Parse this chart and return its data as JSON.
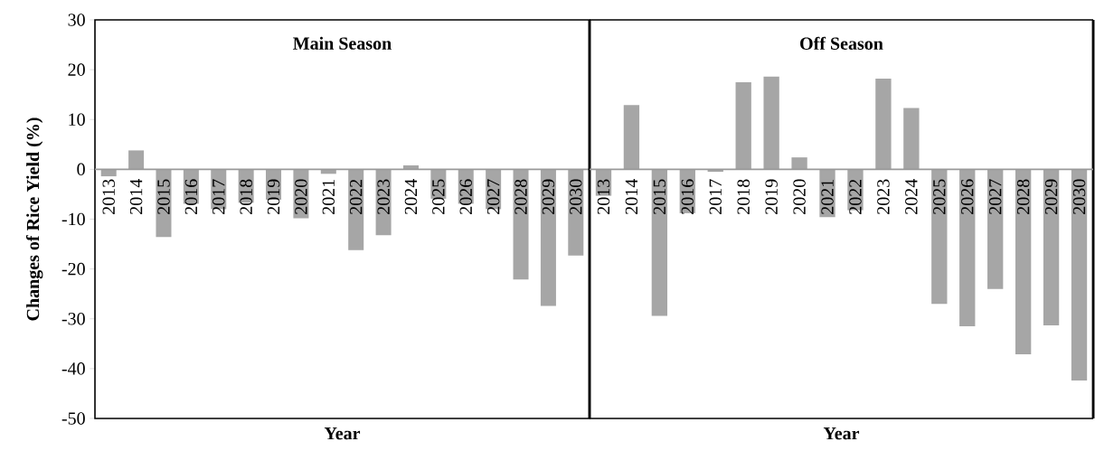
{
  "chart_data": [
    {
      "type": "bar",
      "title": "Main Season",
      "xlabel": "Year",
      "ylabel": "Changes of Rice Yield (%)",
      "categories": [
        "2013",
        "2014",
        "2015",
        "2016",
        "2017",
        "2018",
        "2019",
        "2020",
        "2021",
        "2022",
        "2023",
        "2024",
        "2025",
        "2026",
        "2027",
        "2028",
        "2029",
        "2030"
      ],
      "values": [
        -1.4,
        3.8,
        -13.6,
        -6.9,
        -8,
        -6.7,
        -6.1,
        -9.8,
        -0.9,
        -16.2,
        -13.2,
        0.8,
        -5.9,
        -6.9,
        -8,
        -22.1,
        -27.4,
        -17.3
      ],
      "color": "#a6a6a6",
      "ylim": [
        -50,
        30
      ],
      "yticks": [
        -50,
        -40,
        -30,
        -20,
        -10,
        0,
        10,
        20,
        30
      ]
    },
    {
      "type": "bar",
      "title": "Off Season",
      "xlabel": "Year",
      "categories": [
        "2013",
        "2014",
        "2015",
        "2016",
        "2017",
        "2018",
        "2019",
        "2020",
        "2021",
        "2022",
        "2023",
        "2024",
        "2025",
        "2026",
        "2027",
        "2028",
        "2029",
        "2030"
      ],
      "values": [
        -5.3,
        12.9,
        -29.4,
        -8.8,
        -0.5,
        17.5,
        18.6,
        2.4,
        -9.6,
        -8.2,
        18.2,
        12.3,
        -27.0,
        -31.5,
        -24.0,
        -37.1,
        -31.3,
        -42.4
      ],
      "color": "#a6a6a6",
      "ylim": [
        -50,
        30
      ],
      "yticks": [
        -50,
        -40,
        -30,
        -20,
        -10,
        0,
        10,
        20,
        30
      ],
      "tick_labels": "x"
    }
  ]
}
